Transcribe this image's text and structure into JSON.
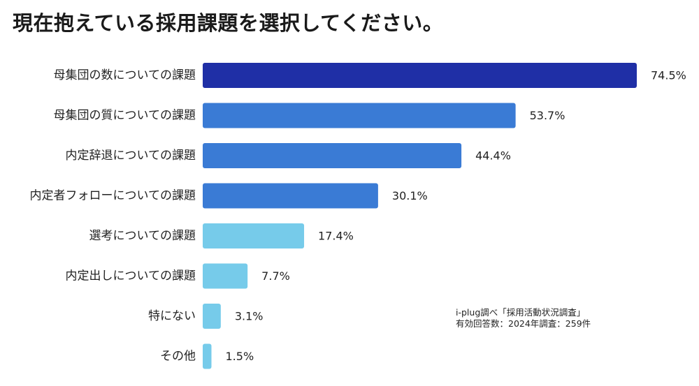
{
  "title": "現在抱えている採用課題を選択してください。",
  "source": {
    "line1": "i-plug調べ「採用活動状況調査」",
    "line2": "有効回答数：2024年調査：259件"
  },
  "colors": {
    "dark": "#1f2fa6",
    "mid": "#3a7bd5",
    "light": "#76cbea"
  },
  "chart_data": {
    "type": "bar",
    "orientation": "horizontal",
    "title": "現在抱えている採用課題を選択してください。",
    "categories": [
      "母集団の数についての課題",
      "母集団の質についての課題",
      "内定辞退についての課題",
      "内定者フォローについての課題",
      "選考についての課題",
      "内定出しについての課題",
      "特にない",
      "その他"
    ],
    "values": [
      74.5,
      53.7,
      44.4,
      30.1,
      17.4,
      7.7,
      3.1,
      1.5
    ],
    "value_labels": [
      "74.5%",
      "53.7%",
      "44.4%",
      "30.1%",
      "17.4%",
      "7.7%",
      "3.1%",
      "1.5%"
    ],
    "bar_colors": [
      "#1f2fa6",
      "#3a7bd5",
      "#3a7bd5",
      "#3a7bd5",
      "#76cbea",
      "#76cbea",
      "#76cbea",
      "#76cbea"
    ],
    "xlim": [
      0,
      74.5
    ],
    "grid": false,
    "legend": "none"
  }
}
